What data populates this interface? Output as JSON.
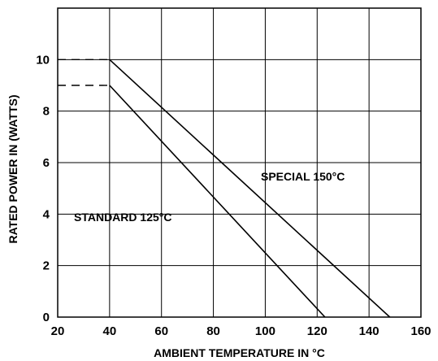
{
  "chart_data": {
    "type": "line",
    "title": "",
    "xlabel": "AMBIENT TEMPERATURE IN °C",
    "ylabel": "RATED POWER IN (WATTS)",
    "xlim": [
      20,
      160
    ],
    "ylim": [
      0,
      12
    ],
    "x_ticks": [
      20,
      40,
      60,
      80,
      100,
      120,
      140,
      160
    ],
    "y_ticks": [
      0,
      2,
      4,
      6,
      8,
      10
    ],
    "grid": true,
    "series": [
      {
        "name": "SPECIAL 150°C",
        "points": [
          [
            40,
            10
          ],
          [
            148,
            0
          ]
        ],
        "lead_in": [
          [
            20,
            10
          ],
          [
            40,
            10
          ]
        ],
        "color": "#000000"
      },
      {
        "name": "STANDARD 125°C",
        "points": [
          [
            40,
            9
          ],
          [
            123,
            0
          ]
        ],
        "lead_in": [
          [
            20,
            9
          ],
          [
            40,
            9
          ]
        ],
        "color": "#000000"
      }
    ],
    "annotations": [
      {
        "text": "SPECIAL 150°C",
        "series": 0
      },
      {
        "text": "STANDARD 125°C",
        "series": 1
      }
    ]
  }
}
